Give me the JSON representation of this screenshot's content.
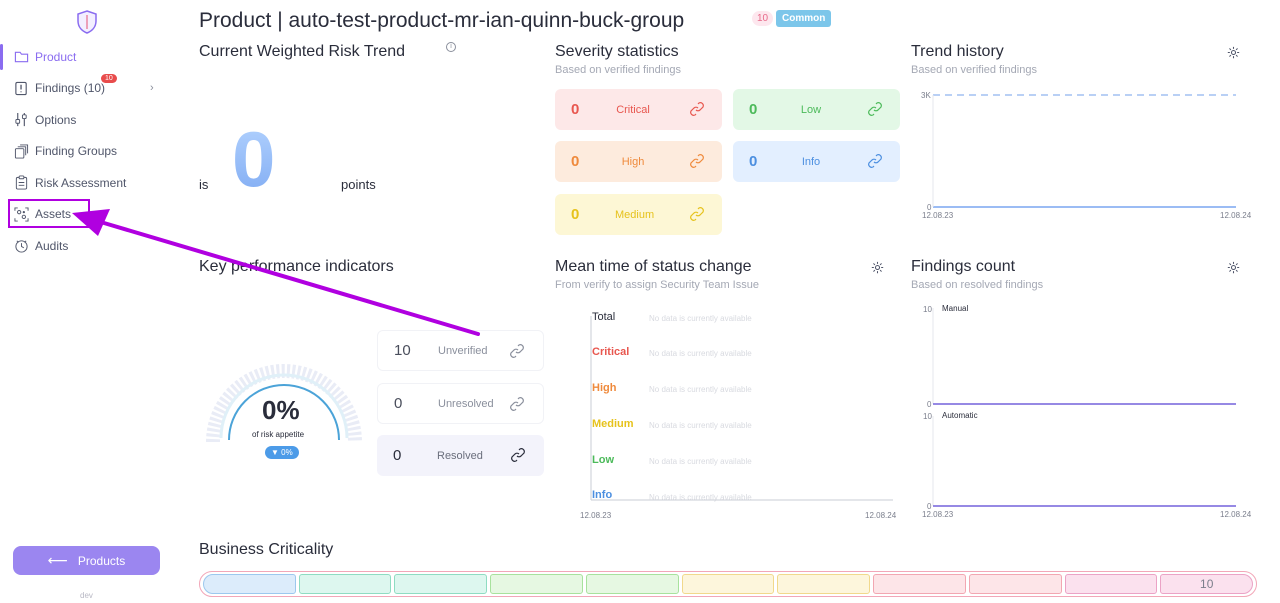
{
  "sidebar": {
    "items": [
      {
        "label": "Product",
        "icon": "folder-icon",
        "active": true
      },
      {
        "label": "Findings (10)",
        "icon": "alert-file-icon",
        "badge": "10",
        "chevron": "›"
      },
      {
        "label": "Options",
        "icon": "sliders-icon"
      },
      {
        "label": "Finding Groups",
        "icon": "stack-icon"
      },
      {
        "label": "Risk Assessment",
        "icon": "clipboard-icon"
      },
      {
        "label": "Assets",
        "icon": "assets-icon"
      },
      {
        "label": "Audits",
        "icon": "audit-icon"
      }
    ],
    "products_button": "Products",
    "env_label": "dev"
  },
  "header": {
    "title": "Product | auto-test-product-mr-ian-quinn-buck-group",
    "count_badge": "10",
    "tag": "Common"
  },
  "risk_trend": {
    "title": "Current Weighted Risk Trend",
    "info_glyph": "i",
    "prefix": "is",
    "value": "0",
    "suffix": "points"
  },
  "severity": {
    "title": "Severity statistics",
    "subtitle": "Based on verified findings",
    "tiles": [
      {
        "value": "0",
        "label": "Critical",
        "color": "#e8574f",
        "bg": "#fde8e8"
      },
      {
        "value": "0",
        "label": "Low",
        "color": "#4cba5a",
        "bg": "#e3f8e6"
      },
      {
        "value": "0",
        "label": "High",
        "color": "#ef8a3c",
        "bg": "#fdebdd"
      },
      {
        "value": "0",
        "label": "Info",
        "color": "#4c8fe0",
        "bg": "#e3efff"
      },
      {
        "value": "0",
        "label": "Medium",
        "color": "#e6c21c",
        "bg": "#fdf7d5"
      }
    ]
  },
  "trend_history": {
    "title": "Trend history",
    "subtitle": "Based on verified findings",
    "y_top": "3K",
    "y_bottom": "0",
    "x_start": "12.08.23",
    "x_end": "12.08.24"
  },
  "kpi": {
    "title": "Key performance indicators",
    "gauge_value": "0%",
    "gauge_label": "of risk appetite",
    "gauge_delta": "▼ 0%",
    "rows": [
      {
        "value": "10",
        "label": "Unverified"
      },
      {
        "value": "0",
        "label": "Unresolved"
      },
      {
        "value": "0",
        "label": "Resolved"
      }
    ]
  },
  "mean_time": {
    "title": "Mean time of status change",
    "subtitle": "From verify to assign Security Team Issue",
    "rows": [
      {
        "label": "Total",
        "color": "#2a2d3b",
        "nodata": "No data is currently available"
      },
      {
        "label": "Critical",
        "color": "#e8574f",
        "nodata": "No data is currently available"
      },
      {
        "label": "High",
        "color": "#ef8a3c",
        "nodata": "No data is currently available"
      },
      {
        "label": "Medium",
        "color": "#e6c21c",
        "nodata": "No data is currently available"
      },
      {
        "label": "Low",
        "color": "#4cba5a",
        "nodata": "No data is currently available"
      },
      {
        "label": "Info",
        "color": "#4c8fe0",
        "nodata": "No data is currently available"
      }
    ],
    "x_start": "12.08.23",
    "x_end": "12.08.24"
  },
  "findings_count": {
    "title": "Findings count",
    "subtitle": "Based on resolved findings",
    "manual_label": "Manual",
    "automatic_label": "Automatic",
    "y_top": "10",
    "y_bottom": "0",
    "x_start": "12.08.23",
    "x_end": "12.08.24"
  },
  "business_criticality": {
    "title": "Business Criticality",
    "selected_value": "10",
    "segments": [
      {
        "bg": "#dcecfb",
        "border": "#9cc8ee"
      },
      {
        "bg": "#ddf7ef",
        "border": "#8fdcc2"
      },
      {
        "bg": "#ddf7ef",
        "border": "#8fdcc2"
      },
      {
        "bg": "#e6f8e2",
        "border": "#a8e29d"
      },
      {
        "bg": "#e6f8e2",
        "border": "#a8e29d"
      },
      {
        "bg": "#fdf6dc",
        "border": "#f1d98c"
      },
      {
        "bg": "#fdf6dc",
        "border": "#f1d98c"
      },
      {
        "bg": "#fde5e8",
        "border": "#f2a7b2"
      },
      {
        "bg": "#fde5e8",
        "border": "#f2a7b2"
      },
      {
        "bg": "#fbe1ee",
        "border": "#eba3c6"
      },
      {
        "bg": "#fbe1ee",
        "border": "#eba3c6"
      }
    ]
  },
  "colors": {
    "accent": "#8a6cf0",
    "annotation": "#b000e0"
  }
}
